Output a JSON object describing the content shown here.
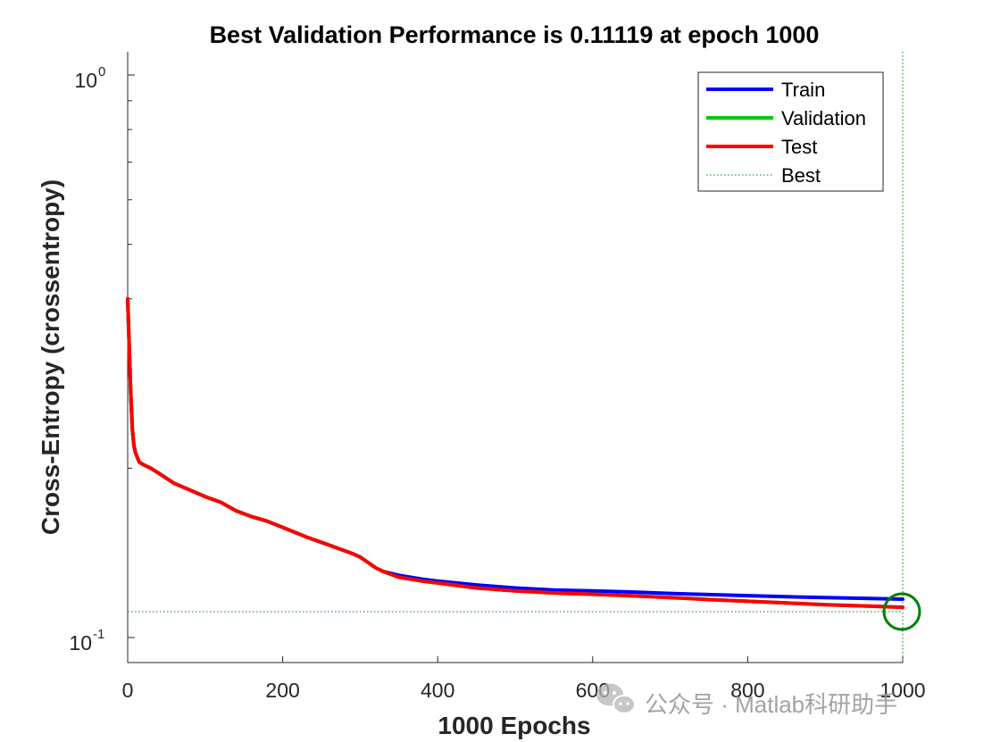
{
  "chart_data": {
    "type": "line",
    "title": "Best Validation Performance is 0.11119 at epoch 1000",
    "xlabel": "1000 Epochs",
    "ylabel": "Cross-Entropy  (crossentropy)",
    "xlim": [
      0,
      1000
    ],
    "ylim": [
      0.1,
      1.0
    ],
    "yscale": "log",
    "xticks": [
      0,
      200,
      400,
      600,
      800,
      1000
    ],
    "xtick_labels": [
      "0",
      "200",
      "400",
      "600",
      "800",
      "1000"
    ],
    "yticks": [
      {
        "base": "10",
        "exp": "0",
        "value": 1.0
      },
      {
        "base": "10",
        "exp": "-1",
        "value": 0.1
      }
    ],
    "legend_position": "top-right",
    "series": [
      {
        "name": "Train",
        "color": "#0000ff",
        "x": [
          0,
          2,
          4,
          6,
          8,
          10,
          15,
          20,
          30,
          40,
          60,
          80,
          100,
          120,
          140,
          160,
          180,
          200,
          230,
          260,
          290,
          300,
          310,
          320,
          330,
          350,
          380,
          400,
          450,
          500,
          550,
          600,
          650,
          700,
          750,
          800,
          850,
          900,
          950,
          1000
        ],
        "y": [
          0.4,
          0.33,
          0.27,
          0.235,
          0.22,
          0.213,
          0.205,
          0.203,
          0.2,
          0.196,
          0.188,
          0.183,
          0.178,
          0.174,
          0.168,
          0.164,
          0.161,
          0.157,
          0.151,
          0.146,
          0.141,
          0.139,
          0.136,
          0.133,
          0.131,
          0.129,
          0.127,
          0.126,
          0.124,
          0.1225,
          0.1215,
          0.121,
          0.1205,
          0.1198,
          0.1192,
          0.1187,
          0.1182,
          0.1178,
          0.1174,
          0.117
        ]
      },
      {
        "name": "Validation",
        "color": "#00cc00",
        "x": [
          0,
          2,
          4,
          6,
          8,
          10,
          15,
          20,
          30,
          40,
          60,
          80,
          100,
          120,
          140,
          160,
          180,
          200,
          230,
          260,
          290,
          300,
          310,
          320,
          330,
          350,
          380,
          400,
          450,
          500,
          550,
          600,
          650,
          700,
          750,
          800,
          850,
          900,
          950,
          1000
        ],
        "y": [
          0.4,
          0.33,
          0.27,
          0.235,
          0.22,
          0.213,
          0.205,
          0.203,
          0.2,
          0.196,
          0.188,
          0.183,
          0.178,
          0.174,
          0.168,
          0.164,
          0.161,
          0.157,
          0.151,
          0.146,
          0.141,
          0.139,
          0.136,
          0.133,
          0.131,
          0.128,
          0.126,
          0.125,
          0.1225,
          0.121,
          0.12,
          0.1194,
          0.1186,
          0.1178,
          0.1168,
          0.116,
          0.1152,
          0.1144,
          0.1138,
          0.1132
        ]
      },
      {
        "name": "Test",
        "color": "#ff0000",
        "x": [
          0,
          2,
          4,
          6,
          8,
          10,
          15,
          20,
          30,
          40,
          60,
          80,
          100,
          120,
          140,
          160,
          180,
          200,
          230,
          260,
          290,
          300,
          310,
          320,
          330,
          350,
          380,
          400,
          450,
          500,
          550,
          600,
          650,
          700,
          750,
          800,
          850,
          900,
          950,
          1000
        ],
        "y": [
          0.4,
          0.33,
          0.27,
          0.235,
          0.22,
          0.213,
          0.205,
          0.203,
          0.2,
          0.196,
          0.188,
          0.183,
          0.178,
          0.174,
          0.168,
          0.164,
          0.161,
          0.157,
          0.151,
          0.146,
          0.141,
          0.139,
          0.136,
          0.133,
          0.131,
          0.128,
          0.126,
          0.125,
          0.1225,
          0.121,
          0.12,
          0.1194,
          0.1186,
          0.1178,
          0.1168,
          0.116,
          0.1152,
          0.1144,
          0.1138,
          0.1132
        ]
      }
    ],
    "best": {
      "name": "Best",
      "epoch": 1000,
      "value": 0.11119,
      "color": "#008000"
    }
  },
  "watermark": {
    "text": "公众号 · Matlab科研助手"
  }
}
